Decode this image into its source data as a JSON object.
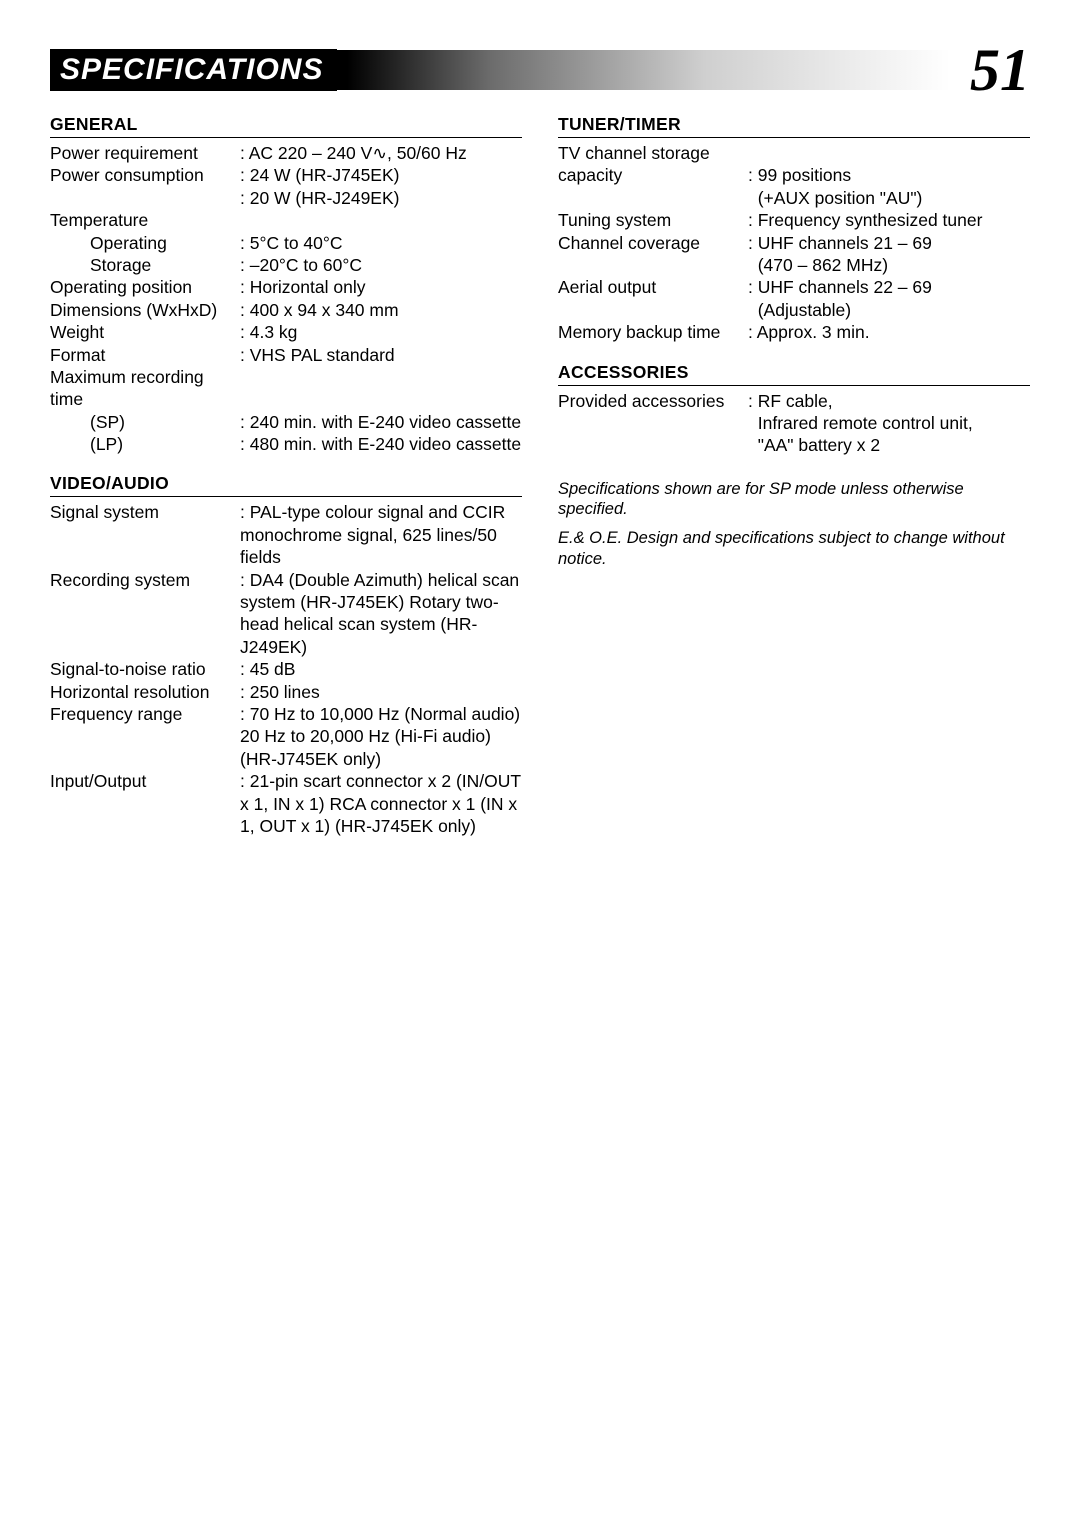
{
  "header": {
    "title": "SPECIFICATIONS",
    "page_number": "51"
  },
  "left": {
    "sections": [
      {
        "heading": "GENERAL",
        "rows": [
          {
            "label": "Power requirement",
            "value": ": AC 220 – 240 V∿, 50/60 Hz"
          },
          {
            "label": "Power consumption",
            "value": ": 24 W (HR-J745EK)"
          },
          {
            "label": "",
            "value": ": 20 W (HR-J249EK)"
          },
          {
            "label": "Temperature",
            "value": ""
          },
          {
            "label": "Operating",
            "indent": 1,
            "value": ": 5°C to 40°C"
          },
          {
            "label": "Storage",
            "indent": 1,
            "value": ": –20°C to 60°C"
          },
          {
            "label": "Operating position",
            "value": ": Horizontal only"
          },
          {
            "label": "Dimensions (WxHxD)",
            "value": ": 400 x 94 x 340 mm"
          },
          {
            "label": "Weight",
            "value": ": 4.3 kg"
          },
          {
            "label": "Format",
            "value": ": VHS PAL standard"
          },
          {
            "label": "Maximum recording time",
            "value": ""
          },
          {
            "label": "(SP)",
            "indent": 1,
            "value": ": 240 min. with E-240 video cassette"
          },
          {
            "label": "(LP)",
            "indent": 1,
            "value": ": 480 min. with E-240 video cassette"
          }
        ]
      },
      {
        "heading": "VIDEO/AUDIO",
        "rows": [
          {
            "label": "Signal system",
            "value": ": PAL-type colour signal and CCIR monochrome signal, 625 lines/50 fields"
          },
          {
            "label": "Recording system",
            "value": ": DA4 (Double Azimuth) helical scan system (HR-J745EK) Rotary two-head helical scan system (HR-J249EK)"
          },
          {
            "label": "Signal-to-noise ratio",
            "value": ": 45 dB"
          },
          {
            "label": "Horizontal resolution",
            "value": ": 250 lines"
          },
          {
            "label": "Frequency range",
            "value": ": 70 Hz to 10,000 Hz (Normal audio) 20 Hz to 20,000 Hz (Hi-Fi audio)(HR-J745EK only)"
          },
          {
            "label": "Input/Output",
            "value": ": 21-pin scart connector x 2 (IN/OUT x 1, IN x 1) RCA connector x 1 (IN x 1, OUT x 1) (HR-J745EK only)"
          }
        ]
      }
    ]
  },
  "right": {
    "sections": [
      {
        "heading": "TUNER/TIMER",
        "rows": [
          {
            "label": "TV channel storage",
            "value": ""
          },
          {
            "label": "capacity",
            "value": ": 99 positions"
          },
          {
            "label": "",
            "value": "  (+AUX position \"AU\")"
          },
          {
            "label": "Tuning system",
            "value": ": Frequency synthesized tuner"
          },
          {
            "label": "Channel coverage",
            "value": ": UHF channels 21 – 69"
          },
          {
            "label": "",
            "value": "  (470 – 862 MHz)"
          },
          {
            "label": "Aerial output",
            "value": ": UHF channels 22 – 69"
          },
          {
            "label": "",
            "value": "  (Adjustable)"
          },
          {
            "label": "Memory backup time",
            "value": ": Approx. 3 min."
          }
        ]
      },
      {
        "heading": "ACCESSORIES",
        "rows": [
          {
            "label": "Provided accessories",
            "value": ": RF cable,"
          },
          {
            "label": "",
            "value": "  Infrared remote control unit,"
          },
          {
            "label": "",
            "value": "  \"AA\" battery x 2"
          }
        ]
      }
    ],
    "notes": [
      "Specifications shown are for SP mode unless otherwise specified.",
      "E.& O.E. Design and specifications subject to change without notice."
    ]
  }
}
